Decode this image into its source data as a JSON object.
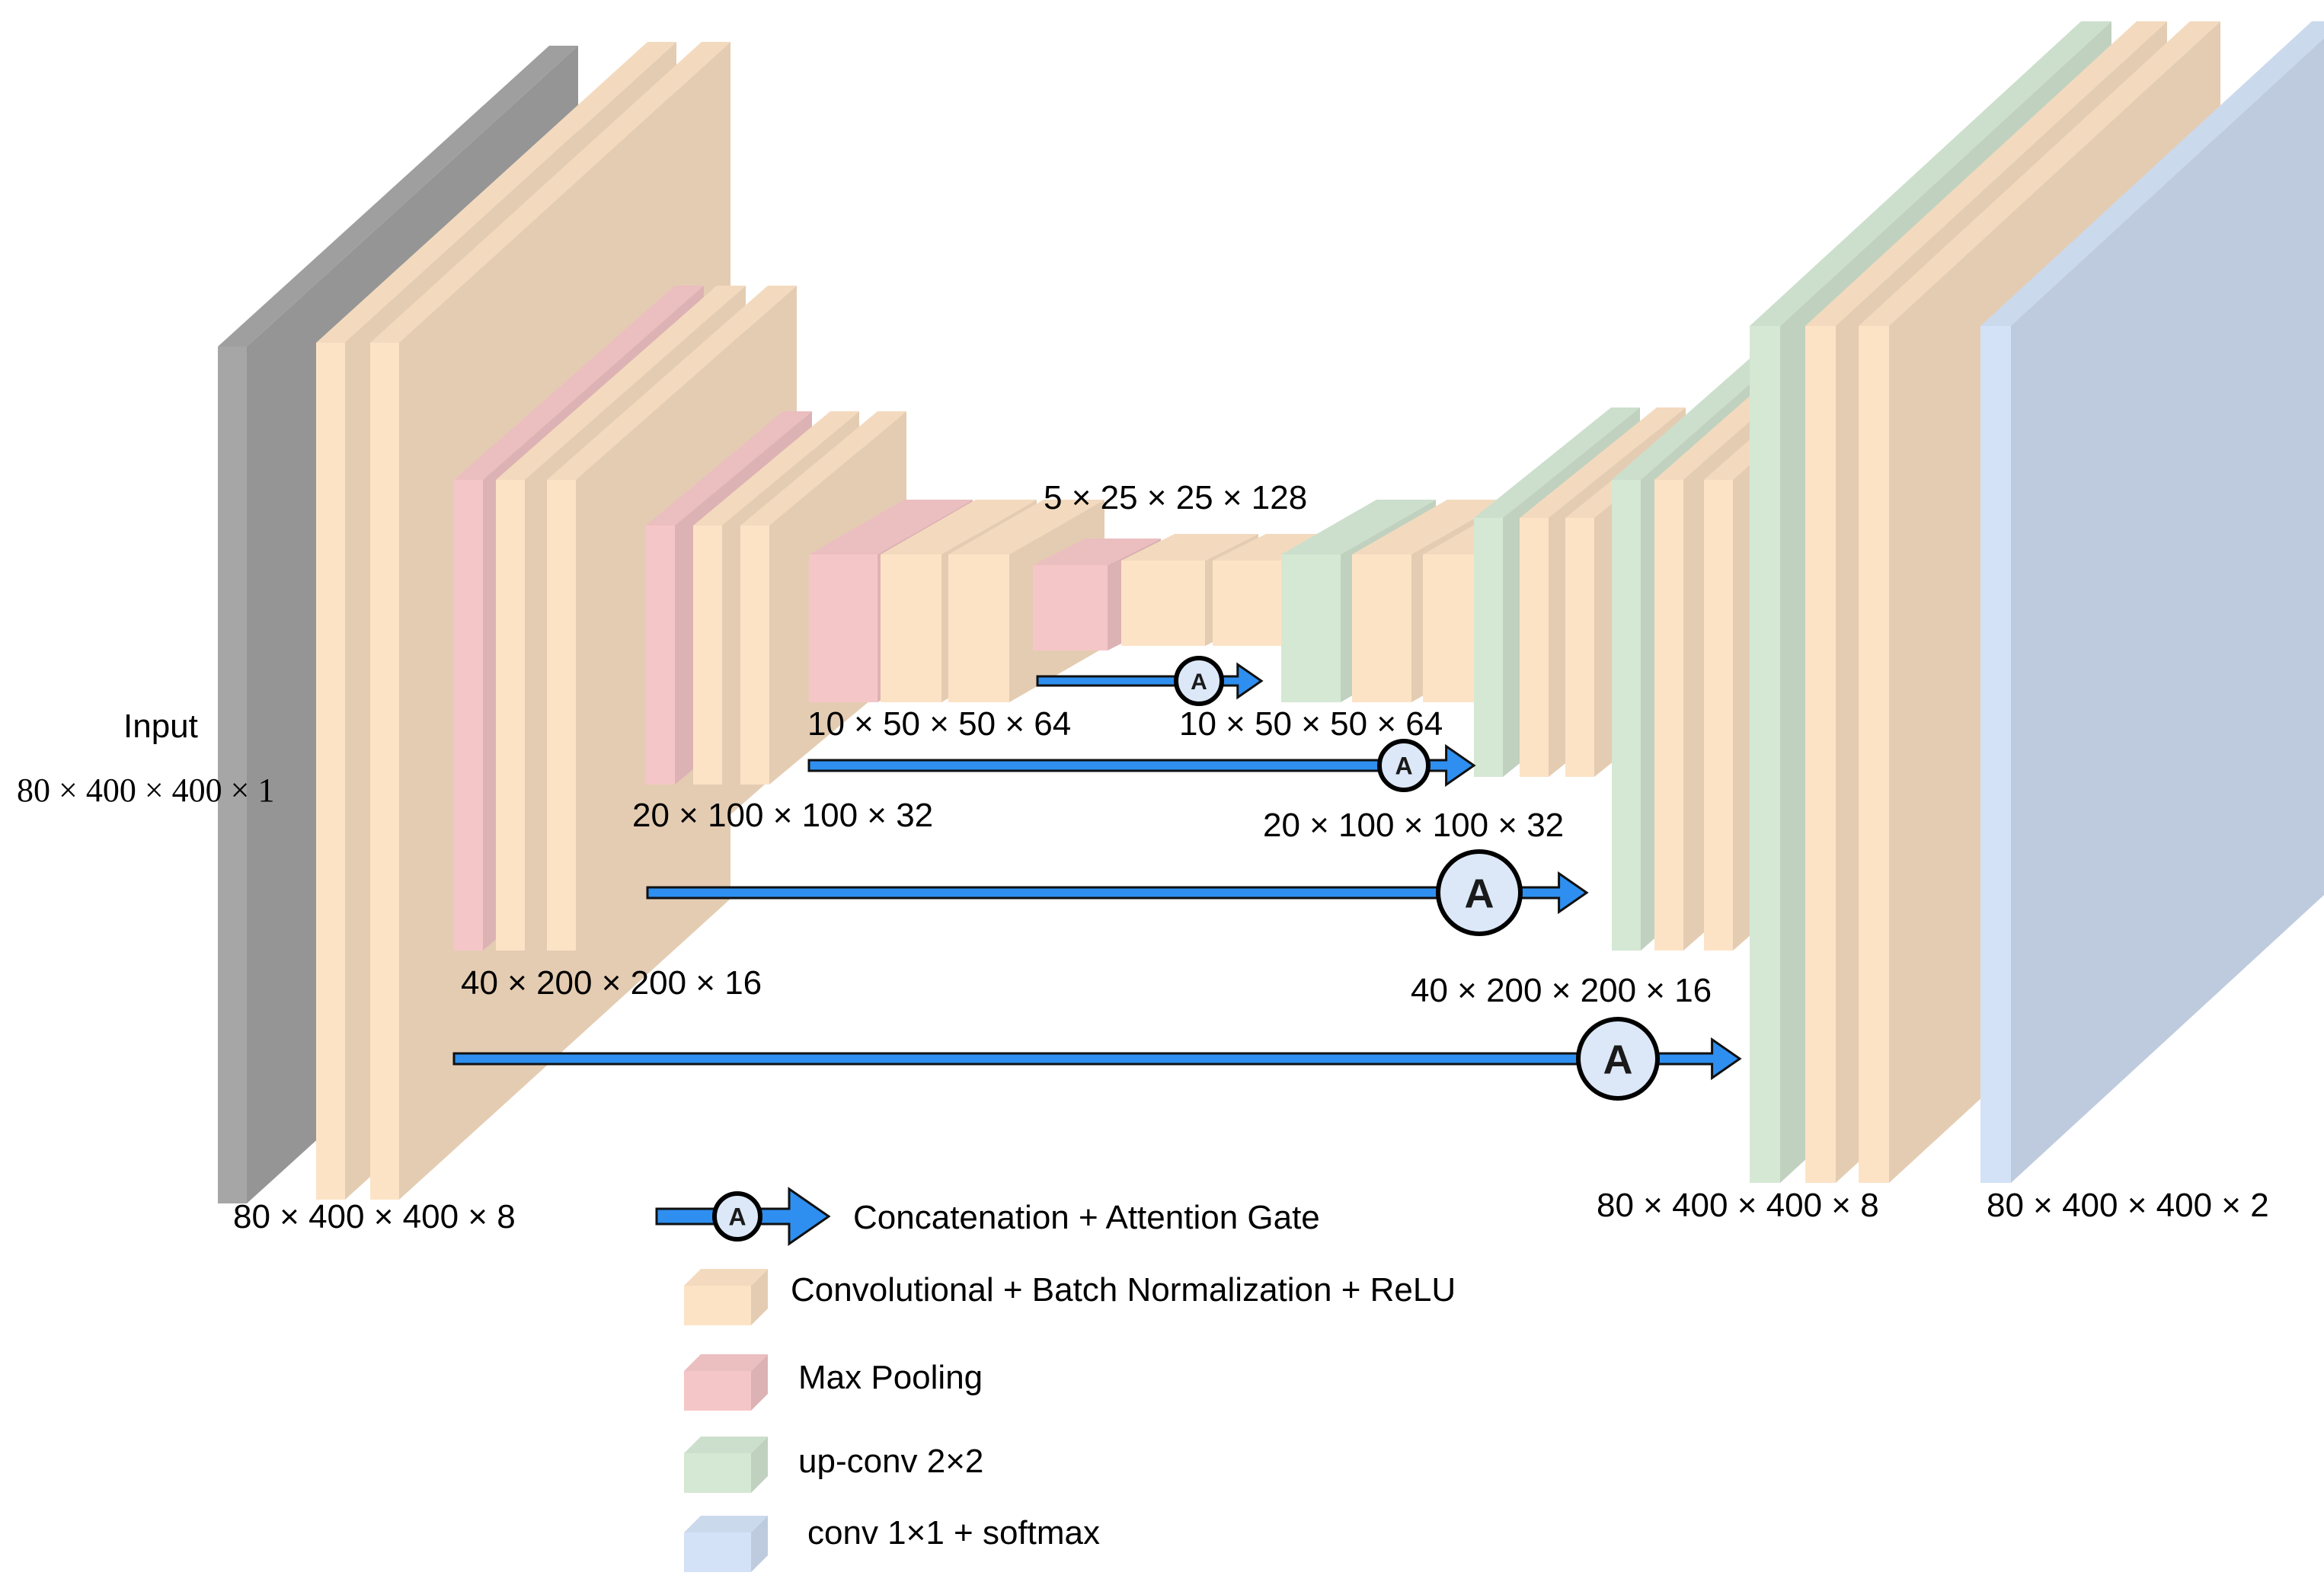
{
  "colors": {
    "input": "#a6a6a6",
    "conv": "#fde3c6",
    "pool": "#f5c6c8",
    "upconv": "#d5e8d4",
    "softmax": "#d3e2f7",
    "arrow": "#2e8ff0",
    "gate_fill": "#dce8f8"
  },
  "labels": {
    "input_title": "Input",
    "input_dims": "80 × 400 × 400 × 1",
    "enc1": "80 × 400 × 400 × 8",
    "enc2": "40 × 200 × 200 × 16",
    "enc3": "20 × 100 × 100 × 32",
    "enc4": "10 × 50 × 50 × 64",
    "bottleneck": "5 × 25 × 25 × 128",
    "dec4": "10 × 50 × 50 × 64",
    "dec3": "20 × 100 × 100 × 32",
    "dec2": "40 × 200 × 200 × 16",
    "dec1": "80 × 400 × 400 × 8",
    "output": "80 × 400 × 400 × 2"
  },
  "gate_letter": "A",
  "legend": {
    "items": [
      {
        "icon": "attention-arrow-icon",
        "label": "Concatenation + Attention Gate"
      },
      {
        "icon": "conv-block-icon",
        "label": "Convolutional + Batch Normalization + ReLU"
      },
      {
        "icon": "pool-block-icon",
        "label": "Max Pooling"
      },
      {
        "icon": "upconv-block-icon",
        "label": "up-conv 2×2"
      },
      {
        "icon": "softmax-block-icon",
        "label": "conv 1×1 + softmax"
      }
    ]
  }
}
